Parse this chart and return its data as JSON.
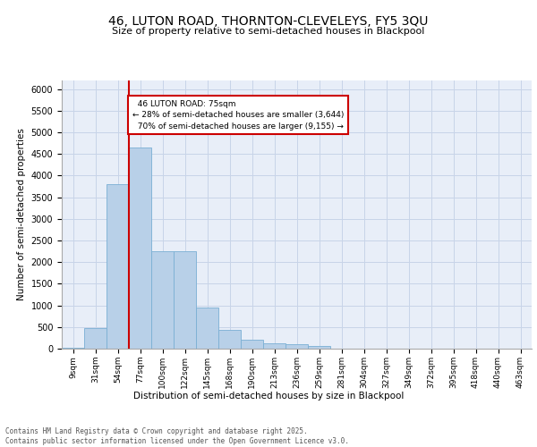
{
  "title_line1": "46, LUTON ROAD, THORNTON-CLEVELEYS, FY5 3QU",
  "title_line2": "Size of property relative to semi-detached houses in Blackpool",
  "xlabel": "Distribution of semi-detached houses by size in Blackpool",
  "ylabel": "Number of semi-detached properties",
  "categories": [
    "9sqm",
    "31sqm",
    "54sqm",
    "77sqm",
    "100sqm",
    "122sqm",
    "145sqm",
    "168sqm",
    "190sqm",
    "213sqm",
    "236sqm",
    "259sqm",
    "281sqm",
    "304sqm",
    "327sqm",
    "349sqm",
    "372sqm",
    "395sqm",
    "418sqm",
    "440sqm",
    "463sqm"
  ],
  "values": [
    30,
    480,
    3800,
    4650,
    2250,
    2250,
    960,
    430,
    200,
    130,
    110,
    70,
    0,
    0,
    0,
    0,
    0,
    0,
    0,
    0,
    0
  ],
  "bar_color": "#b8d0e8",
  "bar_edge_color": "#7aafd4",
  "vline_index": 3,
  "vline_color": "#cc0000",
  "annotation_box_edge_color": "#cc0000",
  "marker_label": "46 LUTON ROAD: 75sqm",
  "marker_smaller_pct": "28%",
  "marker_smaller_n": "3,644",
  "marker_larger_pct": "70%",
  "marker_larger_n": "9,155",
  "ylim": [
    0,
    6200
  ],
  "yticks": [
    0,
    500,
    1000,
    1500,
    2000,
    2500,
    3000,
    3500,
    4000,
    4500,
    5000,
    5500,
    6000
  ],
  "grid_color": "#c8d4e8",
  "background_color": "#e8eef8",
  "footer": "Contains HM Land Registry data © Crown copyright and database right 2025.\nContains public sector information licensed under the Open Government Licence v3.0."
}
